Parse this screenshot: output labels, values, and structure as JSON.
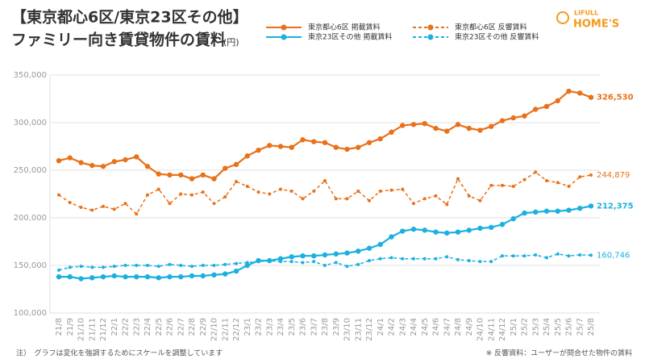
{
  "chart_data": {
    "type": "line",
    "title": "【東京都心6区/東京23区その他】",
    "subtitle": "ファミリー向き賃貸物件の賃料",
    "unit": "(円)",
    "brand": {
      "top": "LIFULL",
      "main": "HOME'S"
    },
    "note": "注）　グラフは変化を強調するためにスケールを調整しています",
    "source_note": "※ 反響資料：ユーザーが問合せた物件の賃料",
    "categories": [
      "21/8",
      "21/9",
      "21/10",
      "21/11",
      "21/12",
      "22/1",
      "22/2",
      "22/3",
      "22/4",
      "22/5",
      "22/6",
      "22/7",
      "22/8",
      "22/9",
      "22/10",
      "22/11",
      "22/12",
      "23/1",
      "23/2",
      "23/3",
      "23/4",
      "23/5",
      "23/6",
      "23/7",
      "23/8",
      "23/9",
      "23/10",
      "23/11",
      "23/12",
      "24/1",
      "24/2",
      "24/3",
      "24/4",
      "24/5",
      "24/6",
      "24/7",
      "24/8",
      "24/9",
      "24/10",
      "24/11",
      "24/12",
      "25/1",
      "25/2",
      "25/3",
      "25/4",
      "25/5",
      "25/6",
      "25/7",
      "25/8"
    ],
    "ylim": [
      100000,
      350000
    ],
    "yticks": [
      {
        "value": 100000,
        "label": "100,000"
      },
      {
        "value": 150000,
        "label": "150,000"
      },
      {
        "value": 200000,
        "label": "200,000"
      },
      {
        "value": 250000,
        "label": "250,000"
      },
      {
        "value": 300000,
        "label": "300,000"
      },
      {
        "value": 350000,
        "label": "350,000"
      }
    ],
    "grid": true,
    "series": [
      {
        "name": "東京都心6区 掲載賃料",
        "color": "#e8711a",
        "dashed": false,
        "values": [
          260000,
          263000,
          258000,
          255000,
          254000,
          259000,
          261000,
          264000,
          254000,
          246000,
          245000,
          245000,
          241000,
          245000,
          241000,
          252000,
          256000,
          265000,
          271000,
          276000,
          275000,
          274000,
          282000,
          280000,
          279000,
          274000,
          272000,
          274000,
          279000,
          283000,
          290000,
          297000,
          298000,
          299000,
          294000,
          291000,
          298000,
          294000,
          292000,
          296000,
          302000,
          305000,
          307000,
          314000,
          317000,
          323000,
          333000,
          331000,
          326530
        ],
        "value_labels": [
          null,
          null,
          null,
          null,
          null,
          null,
          null,
          null,
          null,
          null,
          null,
          null,
          null,
          null,
          null,
          null,
          null,
          null,
          null,
          null,
          null,
          null,
          null,
          null,
          null,
          null,
          null,
          null,
          null,
          null,
          null,
          null,
          null,
          null,
          null,
          null,
          null,
          null,
          null,
          null,
          null,
          null,
          null,
          null,
          null,
          null,
          null,
          null,
          "326,530"
        ]
      },
      {
        "name": "東京23区その他 掲載賃料",
        "color": "#1ab0e0",
        "dashed": false,
        "values": [
          138000,
          138000,
          136000,
          137000,
          138000,
          139000,
          138000,
          138000,
          138000,
          137000,
          138000,
          138000,
          139000,
          139000,
          140000,
          141000,
          144000,
          150000,
          155000,
          155000,
          157000,
          159000,
          160000,
          160000,
          161000,
          162000,
          163000,
          165000,
          168000,
          172000,
          180000,
          186000,
          188000,
          187000,
          185000,
          184000,
          185000,
          187000,
          189000,
          190000,
          193000,
          199000,
          205000,
          206000,
          207000,
          207000,
          208000,
          210000,
          212375
        ],
        "value_labels": [
          null,
          null,
          null,
          null,
          null,
          null,
          null,
          null,
          null,
          null,
          null,
          null,
          null,
          null,
          null,
          null,
          null,
          null,
          null,
          null,
          null,
          null,
          null,
          null,
          null,
          null,
          null,
          null,
          null,
          null,
          null,
          null,
          null,
          null,
          null,
          null,
          null,
          null,
          null,
          null,
          null,
          null,
          null,
          null,
          null,
          null,
          null,
          null,
          "212,375"
        ]
      },
      {
        "name": "東京都心6区 反響賃料",
        "color": "#e8711a",
        "dashed": true,
        "values": [
          224000,
          216000,
          211000,
          208000,
          212000,
          209000,
          215000,
          204000,
          224000,
          230000,
          215000,
          225000,
          224000,
          227000,
          215000,
          222000,
          238000,
          233000,
          227000,
          225000,
          230000,
          228000,
          220000,
          228000,
          239000,
          220000,
          220000,
          228000,
          218000,
          228000,
          229000,
          230000,
          215000,
          220000,
          223000,
          214000,
          241000,
          223000,
          218000,
          234000,
          234000,
          233000,
          240000,
          248000,
          239000,
          237000,
          233000,
          243000,
          244879
        ],
        "value_labels": [
          null,
          null,
          null,
          null,
          null,
          null,
          null,
          null,
          null,
          null,
          null,
          null,
          null,
          null,
          null,
          null,
          null,
          null,
          null,
          null,
          null,
          null,
          null,
          null,
          null,
          null,
          null,
          null,
          null,
          null,
          null,
          null,
          null,
          null,
          null,
          null,
          null,
          null,
          null,
          null,
          null,
          null,
          null,
          null,
          null,
          null,
          null,
          null,
          "244,879"
        ]
      },
      {
        "name": "東京23区その他 反響賃料",
        "color": "#1ab0e0",
        "dashed": true,
        "values": [
          145000,
          148000,
          149000,
          148000,
          148000,
          149000,
          150000,
          150000,
          150000,
          149000,
          151000,
          150000,
          149000,
          150000,
          150000,
          151000,
          152000,
          153000,
          154000,
          155000,
          154000,
          154000,
          153000,
          154000,
          150000,
          153000,
          149000,
          151000,
          155000,
          157000,
          158000,
          157000,
          157000,
          157000,
          157000,
          159000,
          156000,
          155000,
          154000,
          154000,
          160000,
          160000,
          160000,
          161000,
          158000,
          162000,
          160000,
          161000,
          160746
        ],
        "value_labels": [
          null,
          null,
          null,
          null,
          null,
          null,
          null,
          null,
          null,
          null,
          null,
          null,
          null,
          null,
          null,
          null,
          null,
          null,
          null,
          null,
          null,
          null,
          null,
          null,
          null,
          null,
          null,
          null,
          null,
          null,
          null,
          null,
          null,
          null,
          null,
          null,
          null,
          null,
          null,
          null,
          null,
          null,
          null,
          null,
          null,
          null,
          null,
          null,
          "160,746"
        ]
      }
    ]
  }
}
